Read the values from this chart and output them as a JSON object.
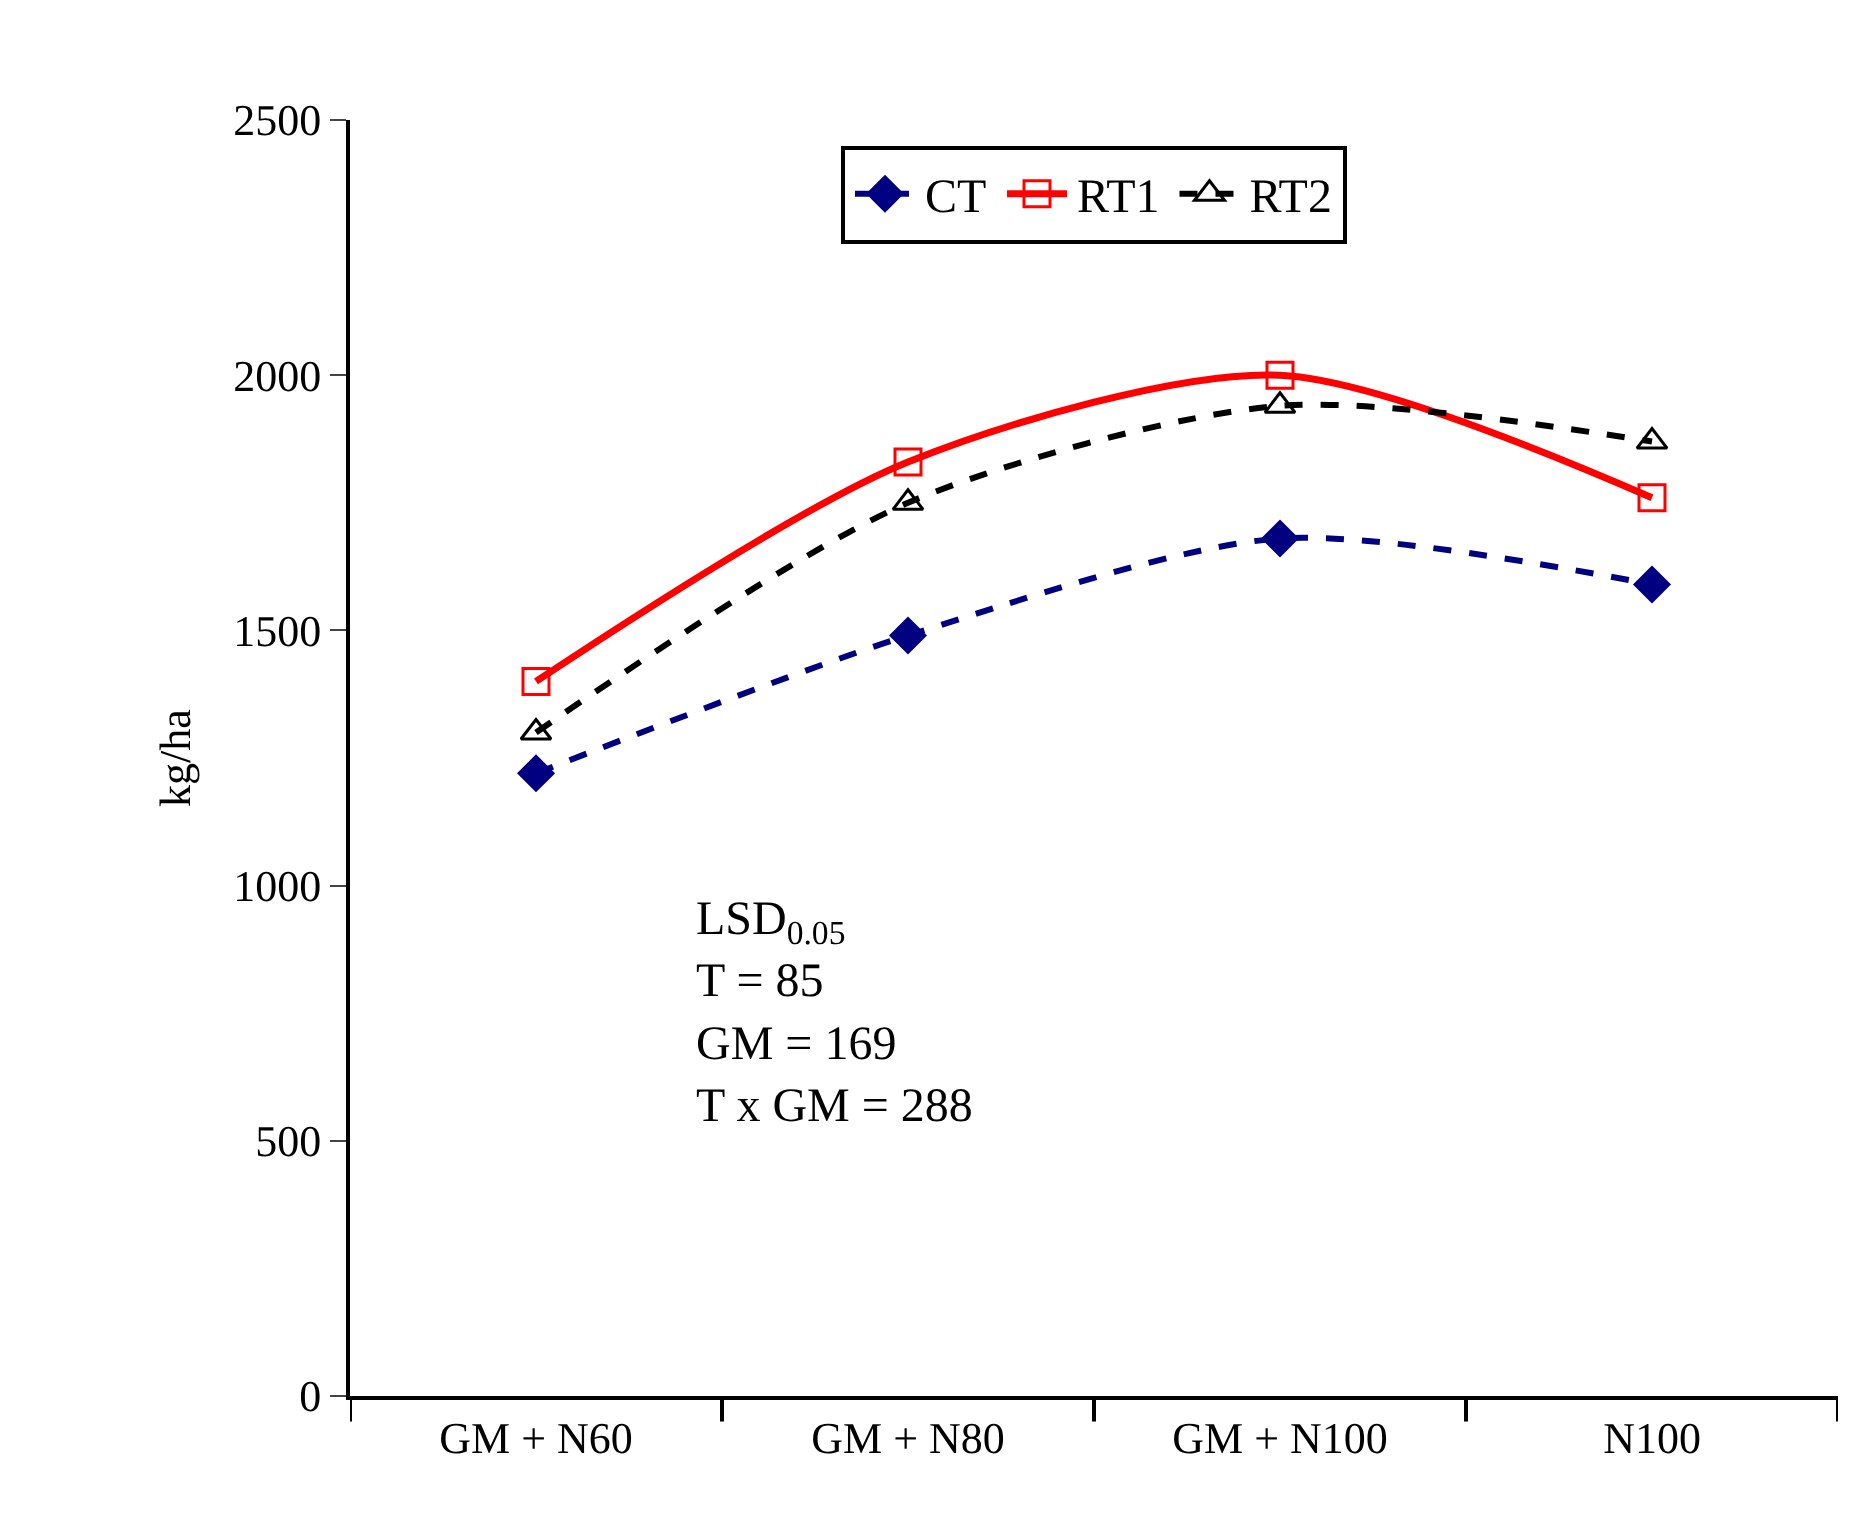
{
  "chart_data": {
    "type": "line",
    "ylabel": "kg/ha",
    "categories": [
      "GM + N60",
      "GM + N80",
      "GM + N100",
      "N100"
    ],
    "series": [
      {
        "name": "CT",
        "color": "#000080",
        "values": [
          1220,
          1490,
          1680,
          1590
        ],
        "marker": "diamond",
        "line_style": "dashed"
      },
      {
        "name": "RT1",
        "color": "#ff0000",
        "values": [
          1400,
          1830,
          2000,
          1760
        ],
        "marker": "square",
        "line_style": "solid"
      },
      {
        "name": "RT2",
        "color": "#000000",
        "values": [
          1300,
          1750,
          1940,
          1870
        ],
        "marker": "triangle",
        "line_style": "dashed"
      }
    ],
    "ylim": [
      0,
      2500
    ],
    "yticks": [
      0,
      500,
      1000,
      1500,
      2000,
      2500
    ],
    "legend": "top",
    "annotations": [
      "LSD$_{0.05}$\nT = 85\nGM = 169\nT x GM = 288"
    ]
  }
}
